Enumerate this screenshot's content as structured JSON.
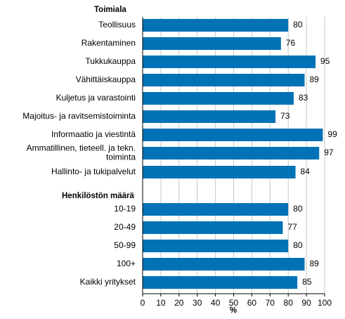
{
  "chart_data": {
    "type": "bar",
    "orientation": "horizontal",
    "groups": [
      {
        "title": "Toimiala",
        "categories": [
          [
            "Teollisuus"
          ],
          [
            "Rakentaminen"
          ],
          [
            "Tukkukauppa"
          ],
          [
            "Vähittäiskauppa"
          ],
          [
            "Kuljetus ja varastointi"
          ],
          [
            "Majoitus- ja ravitsemistoiminta"
          ],
          [
            "Informaatio ja viestintä"
          ],
          [
            "Ammatillinen, tieteell. ja tekn.",
            "toiminta"
          ],
          [
            "Hallinto- ja tukipalvelut"
          ]
        ],
        "values": [
          80,
          76,
          95,
          89,
          83,
          73,
          99,
          97,
          84
        ]
      },
      {
        "title": "Henkilöstön määrä",
        "categories": [
          [
            "10-19"
          ],
          [
            "20-49"
          ],
          [
            "50-99"
          ],
          [
            "100+"
          ],
          [
            "Kaikki yritykset"
          ]
        ],
        "values": [
          80,
          77,
          80,
          89,
          85
        ]
      }
    ],
    "xlabel": "%",
    "xlim": [
      0,
      100
    ],
    "xticks": [
      0,
      10,
      20,
      30,
      40,
      50,
      60,
      70,
      80,
      90,
      100
    ],
    "grid": "vertical",
    "bar_color": "#0072b5",
    "axis_color": "#000000",
    "grid_color": "#c8c8c8"
  }
}
